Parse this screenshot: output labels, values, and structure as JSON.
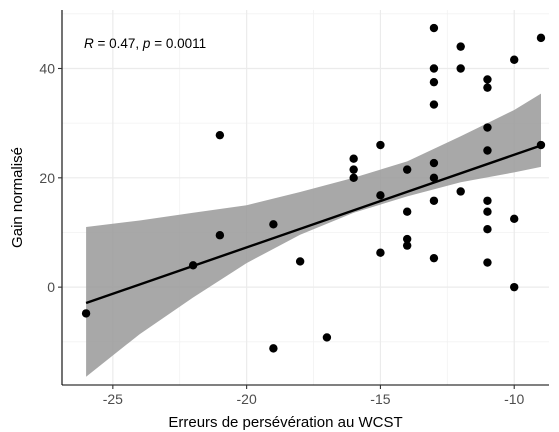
{
  "chart_data": {
    "type": "scatter",
    "xlabel": "Erreurs de persévération au WCST",
    "ylabel": "Gain normalisé",
    "xlim": [
      -26.9,
      -8.7
    ],
    "ylim": [
      -17.9,
      50.7
    ],
    "x_ticks": [
      -25,
      -20,
      -15,
      -10
    ],
    "x_tick_labels": [
      "-25",
      "-20",
      "-15",
      "-10"
    ],
    "y_ticks": [
      0,
      20,
      40
    ],
    "y_tick_labels": [
      "0",
      "20",
      "40"
    ],
    "annotation": {
      "r_symbol": "R",
      "r_text": " = 0.47, ",
      "p_symbol": "p",
      "p_text": " = 0.0011"
    },
    "grid": true,
    "point_color": "#000000",
    "band_color": "#999999",
    "line_color": "#000000",
    "regression": {
      "x_range": [
        -26,
        -9
      ],
      "intercept": 41.17,
      "slope": 1.695,
      "band": [
        {
          "x": -26,
          "lower": -16.4,
          "upper": 11.0
        },
        {
          "x": -24,
          "lower": -8.6,
          "upper": 12.2
        },
        {
          "x": -22,
          "lower": -1.9,
          "upper": 13.6
        },
        {
          "x": -20,
          "lower": 4.4,
          "upper": 15.0
        },
        {
          "x": -18,
          "lower": 9.6,
          "upper": 17.4
        },
        {
          "x": -16,
          "lower": 13.6,
          "upper": 20.0
        },
        {
          "x": -14,
          "lower": 16.6,
          "upper": 23.0
        },
        {
          "x": -12,
          "lower": 19.2,
          "upper": 27.6
        },
        {
          "x": -10,
          "lower": 21.0,
          "upper": 32.4
        },
        {
          "x": -9,
          "lower": 22.0,
          "upper": 35.4
        }
      ]
    },
    "points": [
      {
        "x": -26,
        "y": -4.8
      },
      {
        "x": -22,
        "y": 4.0
      },
      {
        "x": -21,
        "y": 27.8
      },
      {
        "x": -21,
        "y": 9.5
      },
      {
        "x": -19,
        "y": 11.5
      },
      {
        "x": -19,
        "y": -11.2
      },
      {
        "x": -18,
        "y": 4.7
      },
      {
        "x": -17,
        "y": -9.2
      },
      {
        "x": -16,
        "y": 23.5
      },
      {
        "x": -16,
        "y": 21.5
      },
      {
        "x": -16,
        "y": 20.0
      },
      {
        "x": -15,
        "y": 26.0
      },
      {
        "x": -15,
        "y": 16.8
      },
      {
        "x": -15,
        "y": 6.3
      },
      {
        "x": -14,
        "y": 21.5
      },
      {
        "x": -14,
        "y": 13.8
      },
      {
        "x": -14,
        "y": 8.8
      },
      {
        "x": -14,
        "y": 7.6
      },
      {
        "x": -13,
        "y": 47.4
      },
      {
        "x": -13,
        "y": 40.0
      },
      {
        "x": -13,
        "y": 37.5
      },
      {
        "x": -13,
        "y": 33.4
      },
      {
        "x": -13,
        "y": 22.7
      },
      {
        "x": -13,
        "y": 20.0
      },
      {
        "x": -13,
        "y": 15.8
      },
      {
        "x": -13,
        "y": 5.3
      },
      {
        "x": -12,
        "y": 44.0
      },
      {
        "x": -12,
        "y": 40.0
      },
      {
        "x": -12,
        "y": 17.5
      },
      {
        "x": -11,
        "y": 38.0
      },
      {
        "x": -11,
        "y": 36.5
      },
      {
        "x": -11,
        "y": 29.2
      },
      {
        "x": -11,
        "y": 25.0
      },
      {
        "x": -11,
        "y": 15.8
      },
      {
        "x": -11,
        "y": 13.8
      },
      {
        "x": -11,
        "y": 10.6
      },
      {
        "x": -11,
        "y": 4.5
      },
      {
        "x": -10,
        "y": 41.6
      },
      {
        "x": -10,
        "y": 12.5
      },
      {
        "x": -10,
        "y": 0.0
      },
      {
        "x": -9,
        "y": 45.6
      },
      {
        "x": -9,
        "y": 26.0
      }
    ]
  }
}
